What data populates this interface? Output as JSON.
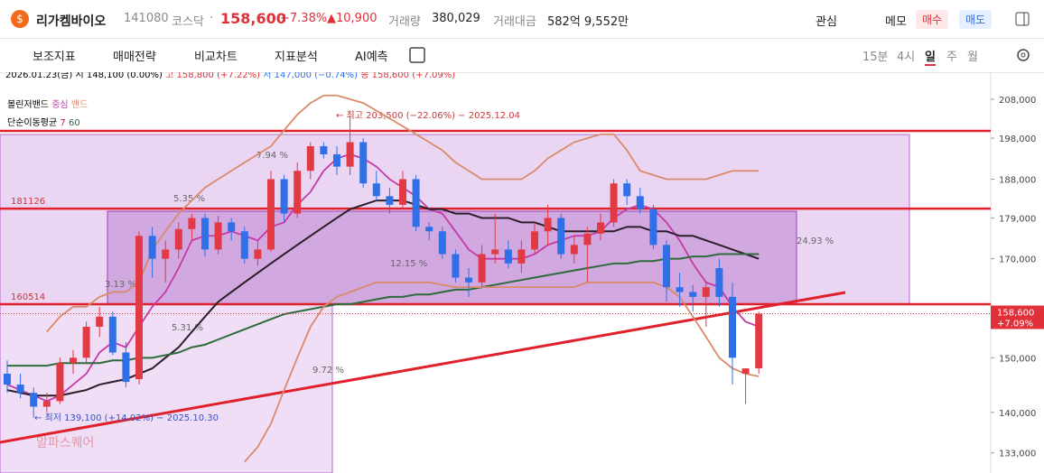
{
  "header": {
    "name": "리가켐바이오",
    "code": "141080",
    "market": "코스닥",
    "dot": "·",
    "price": "158,600",
    "change_pct": "+7.38%",
    "change": "▲10,900",
    "volume_label": "거래량",
    "volume": "380,029",
    "amount_label": "거래대금",
    "amount": "582억 9,552만",
    "watch": "관심",
    "memo": "메모",
    "buy": "매수",
    "sell": "매도"
  },
  "toolbar": {
    "tools": [
      "보조지표",
      "매매전략",
      "비교차트",
      "지표분석",
      "AI예측"
    ],
    "periods": [
      "15분",
      "4시",
      "일",
      "주",
      "월"
    ]
  },
  "info": {
    "date": "2026.01.23(금)",
    "open_label": "시",
    "open": "148,100 (0.00%)",
    "high_label": "고",
    "high": "158,800 (+7.22%)",
    "low_label": "저",
    "low": "147,000 (−0.74%)",
    "close_label": "종",
    "close": "158,600 (+7.09%)",
    "bollinger": "볼린저밴드",
    "bollinger_mid": "중심",
    "bollinger_band": "밴드",
    "sma": "단순이동평균",
    "sma_short": "7",
    "sma_long": "60"
  },
  "chart_data": {
    "type": "candlestick",
    "log_scale": true,
    "ylim": [
      131000,
      214000
    ],
    "yticks": [
      {
        "value": 133000,
        "label": "133,000"
      },
      {
        "value": 140000,
        "label": "140,000"
      },
      {
        "value": 150000,
        "label": "150,000"
      },
      {
        "value": 170000,
        "label": "170,000"
      },
      {
        "value": 179000,
        "label": "179,000"
      },
      {
        "value": 188000,
        "label": "188,000"
      },
      {
        "value": 198000,
        "label": "198,000"
      },
      {
        "value": 208000,
        "label": "208,000"
      }
    ],
    "up_color": "#e23a45",
    "down_color": "#2f6fe8",
    "open": [
      147000,
      145000,
      143500,
      141000,
      142000,
      149000,
      150000,
      156000,
      158000,
      151000,
      146000,
      175000,
      170000,
      172000,
      176500,
      179000,
      172000,
      178000,
      176000,
      170000,
      172000,
      188000,
      180000,
      190000,
      196000,
      194000,
      191000,
      197000,
      187000,
      184000,
      182000,
      188000,
      177000,
      176000,
      171000,
      166000,
      165000,
      171000,
      172000,
      169000,
      172000,
      176000,
      179000,
      171000,
      173000,
      175500,
      178000,
      187000,
      184000,
      181000,
      173000,
      164000,
      163000,
      162000,
      168000,
      162000,
      147000,
      148000
    ],
    "high": [
      149500,
      147000,
      144500,
      143500,
      150000,
      151500,
      157000,
      160000,
      159000,
      153000,
      176000,
      177000,
      174000,
      178000,
      180000,
      180000,
      179500,
      179000,
      177000,
      174000,
      190000,
      189000,
      192000,
      197000,
      197000,
      196000,
      203500,
      198000,
      190000,
      186000,
      190000,
      189000,
      178000,
      177000,
      172000,
      168000,
      173000,
      180000,
      174000,
      174000,
      178000,
      182000,
      180000,
      175000,
      177000,
      180000,
      188000,
      188000,
      186000,
      182000,
      174000,
      167000,
      164500,
      165000,
      170000,
      165000,
      148000,
      159000
    ],
    "low": [
      143500,
      142500,
      139100,
      140000,
      141500,
      147000,
      149000,
      154000,
      150500,
      144500,
      145000,
      166000,
      165000,
      170000,
      174000,
      170500,
      171000,
      174000,
      169000,
      168500,
      171500,
      178000,
      179000,
      188000,
      193000,
      189000,
      189000,
      186000,
      183000,
      180000,
      181000,
      176000,
      174000,
      170000,
      165000,
      162000,
      164000,
      169000,
      168000,
      167000,
      171000,
      173000,
      170000,
      169000,
      165000,
      174000,
      177000,
      182000,
      180000,
      172000,
      161000,
      160000,
      159000,
      156000,
      160000,
      145000,
      141500,
      147000
    ],
    "close": [
      145000,
      143500,
      141000,
      142000,
      149000,
      150000,
      156000,
      158000,
      151000,
      145500,
      175000,
      170000,
      172000,
      176500,
      179000,
      172000,
      178000,
      176000,
      170000,
      172000,
      188000,
      180000,
      190000,
      196000,
      194000,
      191000,
      197000,
      187000,
      184000,
      182000,
      188000,
      177000,
      176000,
      171000,
      166000,
      165000,
      171000,
      172000,
      169000,
      172000,
      176000,
      179000,
      171000,
      173000,
      175500,
      178000,
      187000,
      184000,
      181000,
      173000,
      164000,
      163000,
      162000,
      164000,
      162000,
      150000,
      148000,
      158600
    ],
    "lines": [
      {
        "name": "중심",
        "color": "#c43aa8",
        "values": [
          145000,
          144000,
          143000,
          142000,
          143000,
          145000,
          147000,
          151000,
          153000,
          152000,
          156000,
          160000,
          163000,
          168000,
          174000,
          175000,
          175000,
          176000,
          175000,
          174000,
          177000,
          178000,
          182000,
          185000,
          190000,
          193000,
          194000,
          193000,
          191000,
          188000,
          186000,
          184000,
          181000,
          180000,
          176000,
          172000,
          170000,
          170000,
          170000,
          170000,
          171000,
          173000,
          174000,
          175000,
          175000,
          176000,
          179000,
          181000,
          182000,
          181000,
          178000,
          174000,
          169000,
          165000,
          164000,
          160000,
          157000,
          156000
        ]
      },
      {
        "name": "7",
        "color": "#2b1f2a",
        "values": [
          144000,
          143500,
          143000,
          143000,
          143000,
          143500,
          144000,
          145000,
          145500,
          146000,
          147000,
          148000,
          150000,
          152000,
          155000,
          158000,
          161000,
          163000,
          165000,
          167000,
          169000,
          171000,
          173000,
          175000,
          177000,
          179000,
          181000,
          182000,
          183000,
          183000,
          183000,
          182000,
          181000,
          181000,
          180000,
          180000,
          179000,
          179000,
          179000,
          178000,
          178000,
          177000,
          176000,
          176000,
          176000,
          176000,
          176000,
          177000,
          177000,
          176000,
          176000,
          175000,
          175000,
          174000,
          173000,
          172000,
          171000,
          170000
        ]
      },
      {
        "name": "60",
        "color": "#2e6b3a",
        "values": [
          148500,
          148500,
          148500,
          148500,
          149000,
          149000,
          149000,
          149000,
          149500,
          149500,
          150000,
          150000,
          150500,
          151000,
          152000,
          152500,
          153500,
          154500,
          155500,
          156500,
          157500,
          158500,
          159000,
          159500,
          160000,
          160500,
          160500,
          161000,
          161500,
          162000,
          162000,
          162500,
          162500,
          163000,
          163500,
          163500,
          164000,
          164500,
          165000,
          165500,
          166000,
          166500,
          167000,
          167500,
          168000,
          168500,
          169000,
          169000,
          169500,
          169500,
          170000,
          170000,
          170500,
          170500,
          171000,
          171000,
          171000,
          171000
        ]
      },
      {
        "name": "밴드",
        "color": "#d98a6a",
        "values": [
          null,
          null,
          null,
          155000,
          158000,
          160000,
          160000,
          162000,
          163000,
          163000,
          165000,
          172000,
          176000,
          180000,
          183000,
          186000,
          188000,
          190000,
          192000,
          194000,
          196000,
          200000,
          204000,
          207000,
          209000,
          209000,
          208000,
          207000,
          205000,
          203000,
          201000,
          199000,
          197000,
          195000,
          192000,
          190000,
          188000,
          188000,
          188000,
          188000,
          190000,
          193000,
          195000,
          197000,
          198000,
          199000,
          199000,
          195000,
          190000,
          189000,
          188000,
          188000,
          188000,
          188000,
          189000,
          190000,
          190000,
          190000
        ]
      },
      {
        "name": "밴드",
        "color": "#d98a6a",
        "values": [
          null,
          null,
          null,
          null,
          null,
          null,
          null,
          null,
          null,
          null,
          null,
          null,
          null,
          null,
          null,
          null,
          null,
          null,
          131500,
          134000,
          138000,
          144000,
          150000,
          156000,
          160000,
          162000,
          163000,
          164000,
          165000,
          165000,
          165000,
          165000,
          165000,
          164500,
          164000,
          164000,
          164000,
          164000,
          164000,
          164000,
          164000,
          164000,
          164000,
          164000,
          165000,
          165000,
          165000,
          165000,
          165000,
          165000,
          164000,
          162000,
          158000,
          154000,
          150000,
          148000,
          147000,
          146500
        ]
      }
    ],
    "hlines": [
      {
        "value": 181126,
        "label": "181126"
      },
      {
        "value": 160514,
        "label": "160514"
      }
    ],
    "last_price": {
      "label": "158,600",
      "pct": "+7.09%"
    },
    "annotations": {
      "high": "← 최고 203,500 (−22.06%) − 2025.12.04",
      "low": "← 최저 139,100 (+14.02%) − 2025.10.30"
    },
    "pct_labels": [
      "7.94 %",
      "5.35 %",
      "3.13 %",
      "5.31 %",
      "9.72 %",
      "12.15 %",
      "24.93 %"
    ],
    "watermark": "알파스퀘어"
  }
}
